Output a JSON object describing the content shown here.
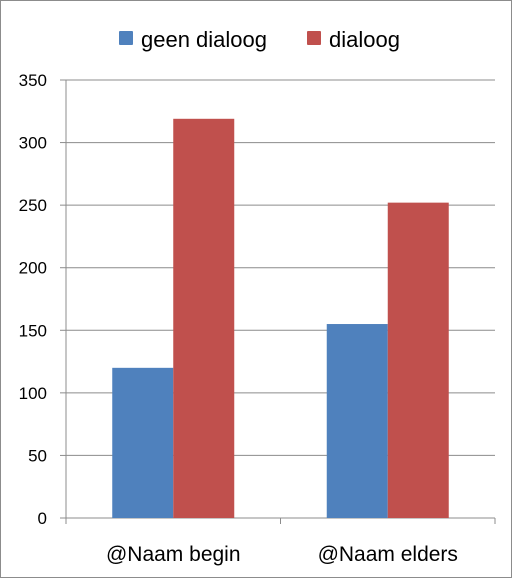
{
  "chart_data": {
    "type": "bar",
    "categories": [
      "@Naam begin",
      "@Naam elders"
    ],
    "series": [
      {
        "name": "geen dialoog",
        "color": "#4F81BD",
        "values": [
          120,
          155
        ]
      },
      {
        "name": "dialoog",
        "color": "#C0504D",
        "values": [
          319,
          252
        ]
      }
    ],
    "ylim": [
      0,
      350
    ],
    "yticks": [
      0,
      50,
      100,
      150,
      200,
      250,
      300,
      350
    ],
    "grid": true,
    "legend": "top"
  }
}
